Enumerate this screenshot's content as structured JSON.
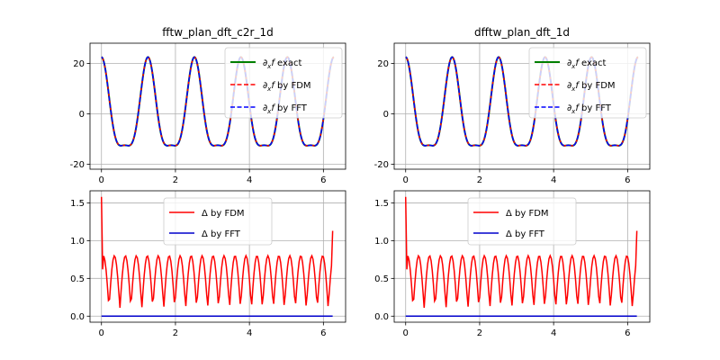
{
  "chart_data": [
    {
      "type": "line",
      "title": "fftw_plan_dft_c2r_1d",
      "xlim": [
        -0.31,
        6.6
      ],
      "ylim": [
        -22,
        28
      ],
      "xticks": [
        0,
        2,
        4,
        6
      ],
      "yticks": [
        -20,
        0,
        20
      ],
      "grid": true,
      "legend_placement": "top-right",
      "series": [
        {
          "name": "∂xf exact",
          "color": "#008000",
          "style": "solid",
          "expression": "d/dx of f, sampled 0..2π"
        },
        {
          "name": "∂xf by FDM",
          "color": "#ff0000",
          "style": "dashed"
        },
        {
          "name": "∂xf by FFT",
          "color": "#0000ff",
          "style": "dashed"
        }
      ]
    },
    {
      "type": "line",
      "title": "dfftw_plan_dft_1d",
      "xlim": [
        -0.31,
        6.6
      ],
      "ylim": [
        -22,
        28
      ],
      "xticks": [
        0,
        2,
        4,
        6
      ],
      "yticks": [
        -20,
        0,
        20
      ],
      "grid": true,
      "legend_placement": "top-right",
      "series": [
        {
          "name": "∂xf exact",
          "color": "#008000",
          "style": "solid"
        },
        {
          "name": "∂xf by FDM",
          "color": "#ff0000",
          "style": "dashed"
        },
        {
          "name": "∂xf by FFT",
          "color": "#0000ff",
          "style": "dashed"
        }
      ]
    },
    {
      "type": "line",
      "title": "",
      "xlim": [
        -0.31,
        6.6
      ],
      "ylim": [
        -0.08,
        1.66
      ],
      "xticks": [
        0,
        2,
        4,
        6
      ],
      "yticks": [
        0.0,
        0.5,
        1.0,
        1.5
      ],
      "grid": true,
      "legend_placement": "upper-center",
      "series": [
        {
          "name": "Δ by FDM",
          "color": "#ff0000",
          "style": "solid"
        },
        {
          "name": "Δ by FFT",
          "color": "#0000cc",
          "style": "solid",
          "values_constant": 0.0
        }
      ]
    },
    {
      "type": "line",
      "title": "",
      "xlim": [
        -0.31,
        6.6
      ],
      "ylim": [
        -0.08,
        1.66
      ],
      "xticks": [
        0,
        2,
        4,
        6
      ],
      "yticks": [
        0.0,
        0.5,
        1.0,
        1.5
      ],
      "grid": true,
      "legend_placement": "upper-center",
      "series": [
        {
          "name": "Δ by FDM",
          "color": "#ff0000",
          "style": "solid"
        },
        {
          "name": "Δ by FFT",
          "color": "#0000cc",
          "style": "solid",
          "values_constant": 0.0
        }
      ]
    }
  ],
  "labels": {
    "legend_top": [
      "exact",
      "by FDM",
      "by FFT"
    ],
    "legend_bottom": [
      "by FDM",
      "by FFT"
    ]
  }
}
